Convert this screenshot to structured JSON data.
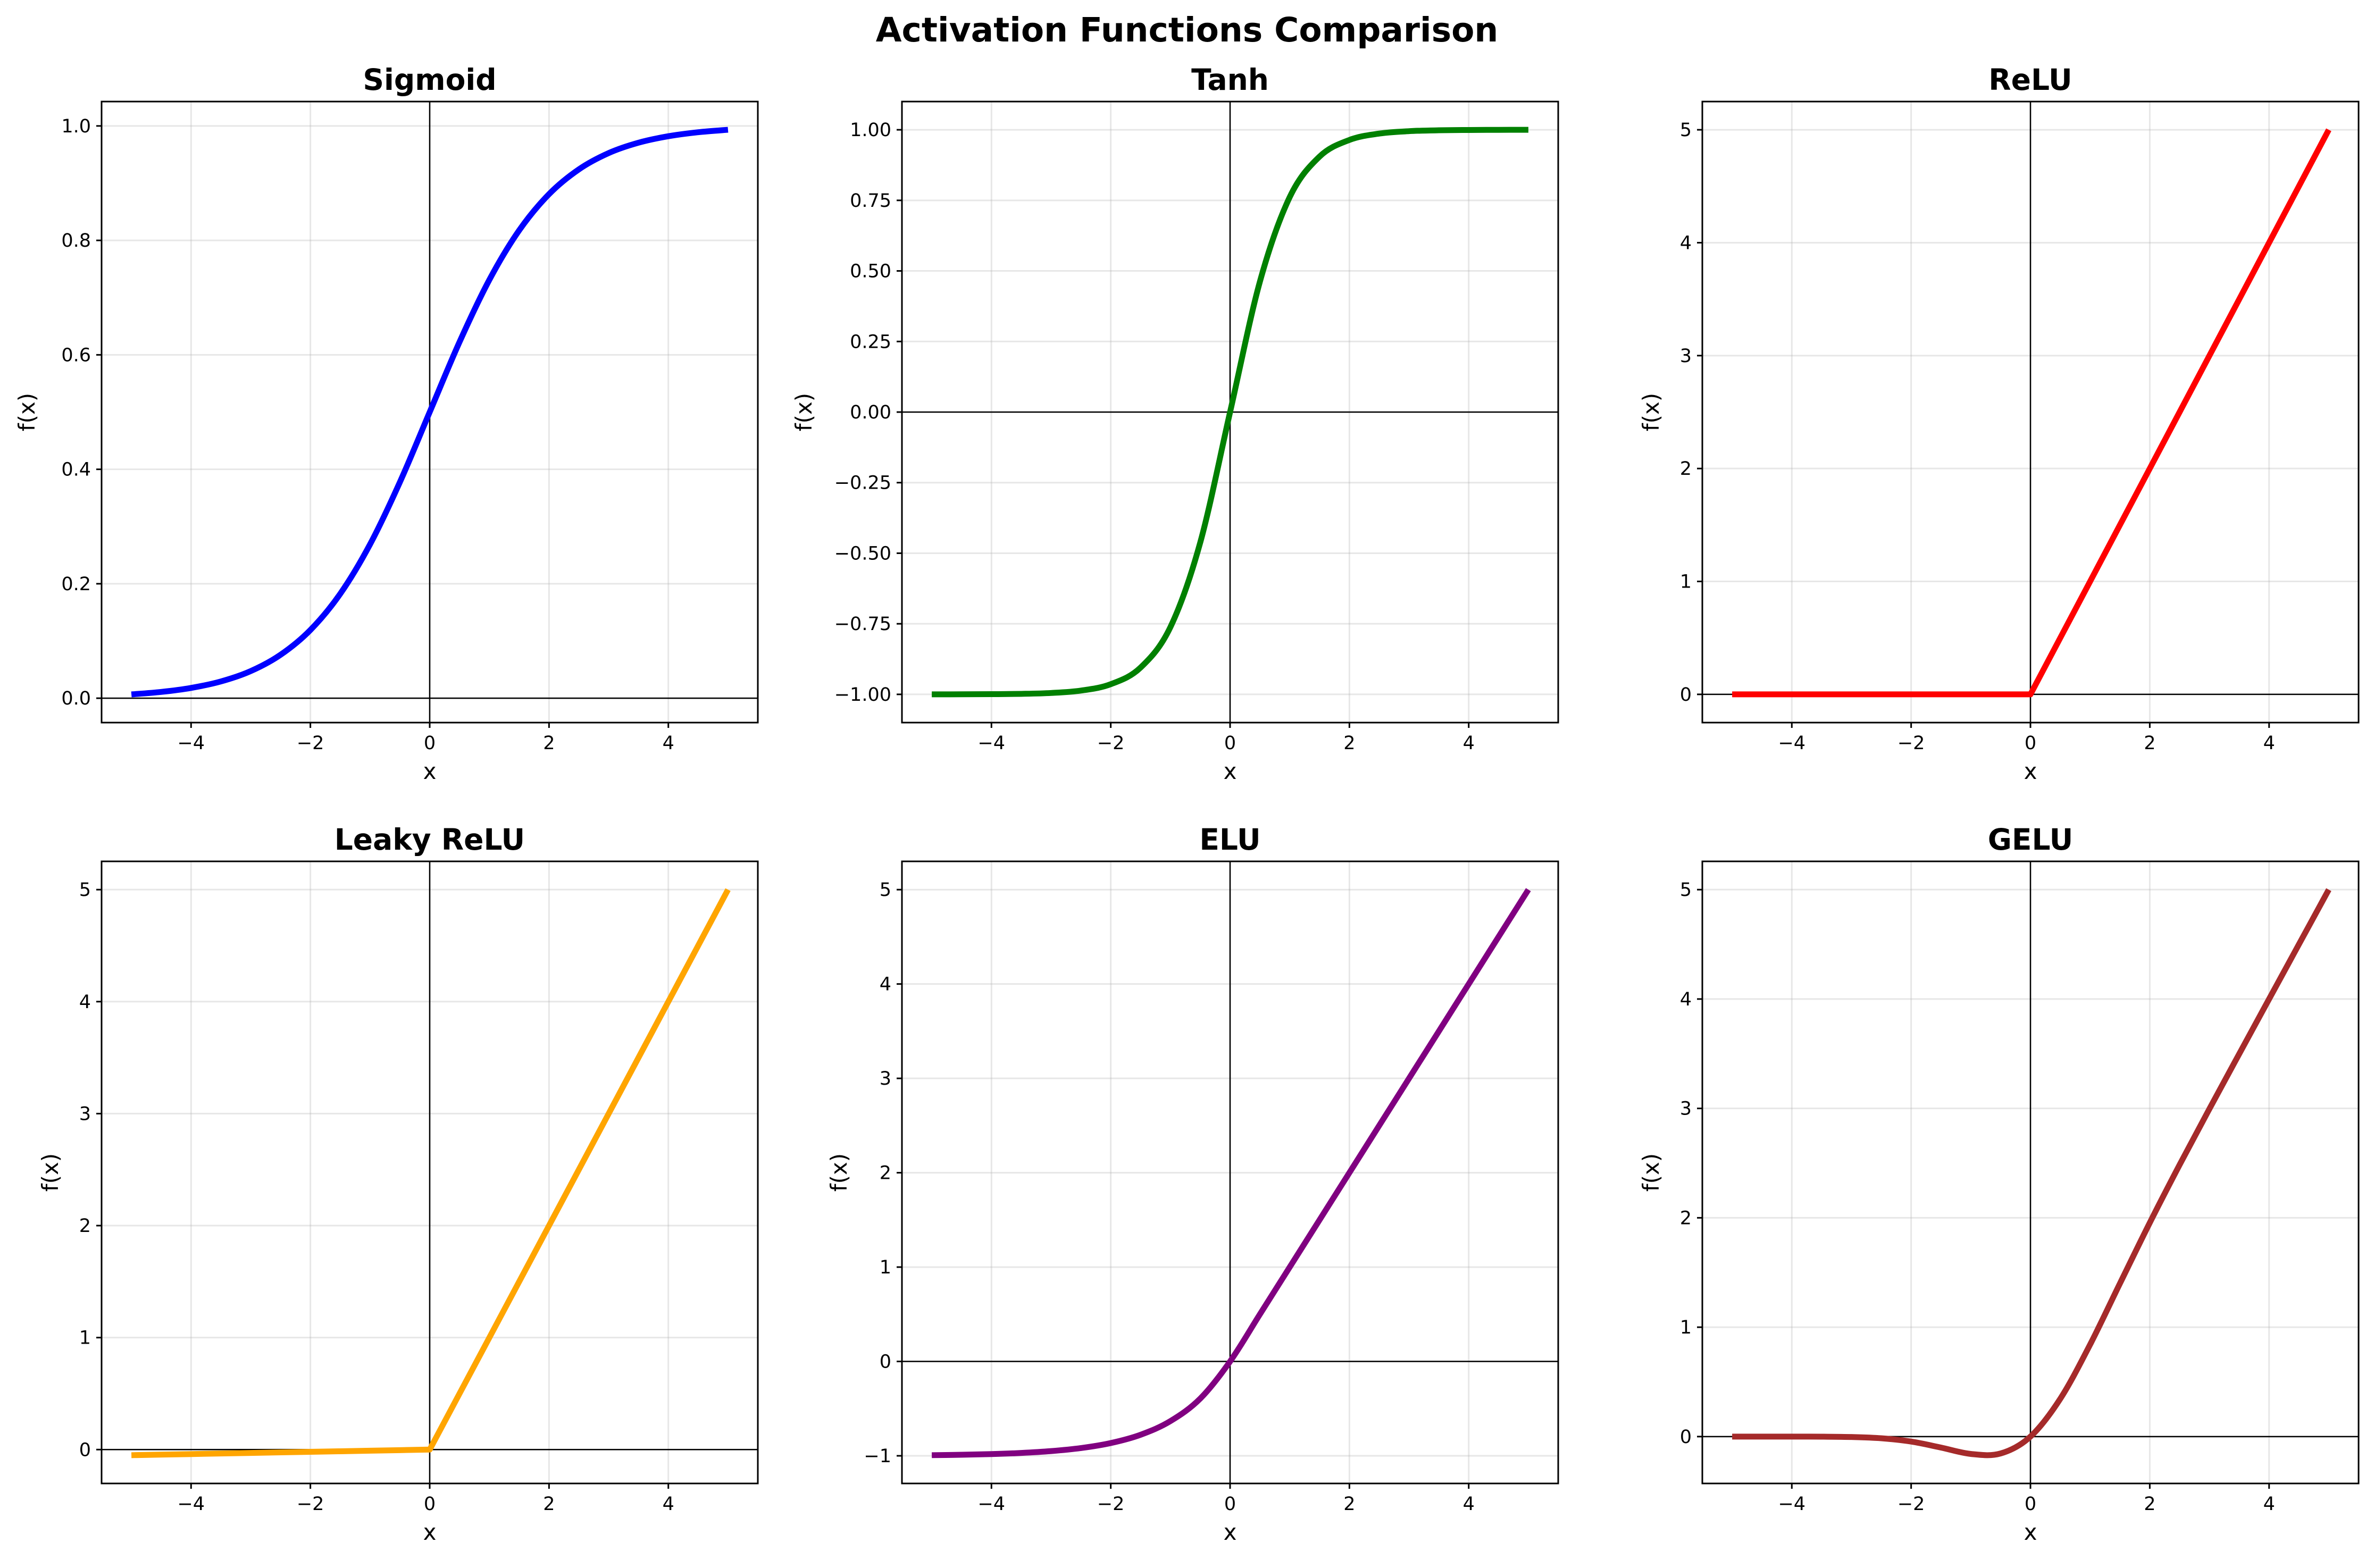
{
  "chart_data": {
    "title": "Activation Functions Comparison",
    "x": [
      -5,
      -4.5,
      -4,
      -3.5,
      -3,
      -2.5,
      -2,
      -1.5,
      -1,
      -0.5,
      0,
      0.5,
      1,
      1.5,
      2,
      2.5,
      3,
      3.5,
      4,
      4.5,
      5
    ],
    "panels": [
      {
        "type": "line",
        "title": "Sigmoid",
        "xlabel": "x",
        "ylabel": "f(x)",
        "color": "#0000ff",
        "xlim": [
          -5.5,
          5.5
        ],
        "ylim": [
          -0.0426,
          1.0426
        ],
        "grid": true,
        "xticks": [
          -4,
          -2,
          0,
          2,
          4
        ],
        "xtick_labels": [
          "−4",
          "−2",
          "0",
          "2",
          "4"
        ],
        "yticks": [
          0,
          0.2,
          0.4,
          0.6,
          0.8,
          1.0
        ],
        "ytick_labels": [
          "0.0",
          "0.2",
          "0.4",
          "0.6",
          "0.8",
          "1.0"
        ],
        "y": [
          0.0067,
          0.011,
          0.018,
          0.0293,
          0.0474,
          0.0759,
          0.1192,
          0.1824,
          0.2689,
          0.3775,
          0.5,
          0.6225,
          0.7311,
          0.8176,
          0.8808,
          0.9241,
          0.9526,
          0.9707,
          0.982,
          0.989,
          0.9933
        ]
      },
      {
        "type": "line",
        "title": "Tanh",
        "xlabel": "x",
        "ylabel": "f(x)",
        "color": "#008000",
        "xlim": [
          -5.5,
          5.5
        ],
        "ylim": [
          -1.1,
          1.1
        ],
        "grid": true,
        "xticks": [
          -4,
          -2,
          0,
          2,
          4
        ],
        "xtick_labels": [
          "−4",
          "−2",
          "0",
          "2",
          "4"
        ],
        "yticks": [
          -1,
          -0.75,
          -0.5,
          -0.25,
          0,
          0.25,
          0.5,
          0.75,
          1
        ],
        "ytick_labels": [
          "−1.00",
          "−0.75",
          "−0.50",
          "−0.25",
          "0.00",
          "0.25",
          "0.50",
          "0.75",
          "1.00"
        ],
        "y": [
          -0.9999,
          -0.9998,
          -0.9993,
          -0.9982,
          -0.9951,
          -0.9866,
          -0.964,
          -0.9051,
          -0.7616,
          -0.4621,
          0,
          0.4621,
          0.7616,
          0.9051,
          0.964,
          0.9866,
          0.9951,
          0.9982,
          0.9993,
          0.9998,
          0.9999
        ]
      },
      {
        "type": "line",
        "title": "ReLU",
        "xlabel": "x",
        "ylabel": "f(x)",
        "color": "#ff0000",
        "xlim": [
          -5.5,
          5.5
        ],
        "ylim": [
          -0.25,
          5.25
        ],
        "grid": true,
        "xticks": [
          -4,
          -2,
          0,
          2,
          4
        ],
        "xtick_labels": [
          "−4",
          "−2",
          "0",
          "2",
          "4"
        ],
        "yticks": [
          0,
          1,
          2,
          3,
          4,
          5
        ],
        "ytick_labels": [
          "0",
          "1",
          "2",
          "3",
          "4",
          "5"
        ],
        "y": [
          0,
          0,
          0,
          0,
          0,
          0,
          0,
          0,
          0,
          0,
          0,
          0.5,
          1,
          1.5,
          2,
          2.5,
          3,
          3.5,
          4,
          4.5,
          5
        ]
      },
      {
        "type": "line",
        "title": "Leaky ReLU",
        "xlabel": "x",
        "ylabel": "f(x)",
        "color": "#ffa500",
        "xlim": [
          -5.5,
          5.5
        ],
        "ylim": [
          -0.3025,
          5.2525
        ],
        "grid": true,
        "xticks": [
          -4,
          -2,
          0,
          2,
          4
        ],
        "xtick_labels": [
          "−4",
          "−2",
          "0",
          "2",
          "4"
        ],
        "yticks": [
          0,
          1,
          2,
          3,
          4,
          5
        ],
        "ytick_labels": [
          "0",
          "1",
          "2",
          "3",
          "4",
          "5"
        ],
        "y": [
          -0.05,
          -0.045,
          -0.04,
          -0.035,
          -0.03,
          -0.025,
          -0.02,
          -0.015,
          -0.01,
          -0.005,
          0,
          0.5,
          1,
          1.5,
          2,
          2.5,
          3,
          3.5,
          4,
          4.5,
          5
        ]
      },
      {
        "type": "line",
        "title": "ELU",
        "xlabel": "x",
        "ylabel": "f(x)",
        "color": "#800080",
        "xlim": [
          -5.5,
          5.5
        ],
        "ylim": [
          -1.293,
          5.2997
        ],
        "grid": true,
        "xticks": [
          -4,
          -2,
          0,
          2,
          4
        ],
        "xtick_labels": [
          "−4",
          "−2",
          "0",
          "2",
          "4"
        ],
        "yticks": [
          -1,
          0,
          1,
          2,
          3,
          4,
          5
        ],
        "ytick_labels": [
          "−1",
          "0",
          "1",
          "2",
          "3",
          "4",
          "5"
        ],
        "y": [
          -0.9933,
          -0.9889,
          -0.9817,
          -0.9698,
          -0.9502,
          -0.9179,
          -0.8647,
          -0.7769,
          -0.6321,
          -0.3935,
          0,
          0.5,
          1,
          1.5,
          2,
          2.5,
          3,
          3.5,
          4,
          4.5,
          5
        ]
      },
      {
        "type": "line",
        "title": "GELU",
        "xlabel": "x",
        "ylabel": "f(x)",
        "color": "#a52a2a",
        "xlim": [
          -5.5,
          5.5
        ],
        "ylim": [
          -0.4285,
          5.2585
        ],
        "grid": true,
        "xticks": [
          -4,
          -2,
          0,
          2,
          4
        ],
        "xtick_labels": [
          "−4",
          "−2",
          "0",
          "2",
          "4"
        ],
        "yticks": [
          0,
          1,
          2,
          3,
          4,
          5
        ],
        "ytick_labels": [
          "0",
          "1",
          "2",
          "3",
          "4",
          "5"
        ],
        "y": [
          0,
          0,
          -0.0001,
          -0.0008,
          -0.004,
          -0.0155,
          -0.0455,
          -0.1002,
          -0.1587,
          -0.1543,
          0,
          0.3457,
          0.8413,
          1.3998,
          1.9545,
          2.4845,
          2.996,
          3.4992,
          3.9999,
          4.5,
          5
        ]
      }
    ]
  }
}
